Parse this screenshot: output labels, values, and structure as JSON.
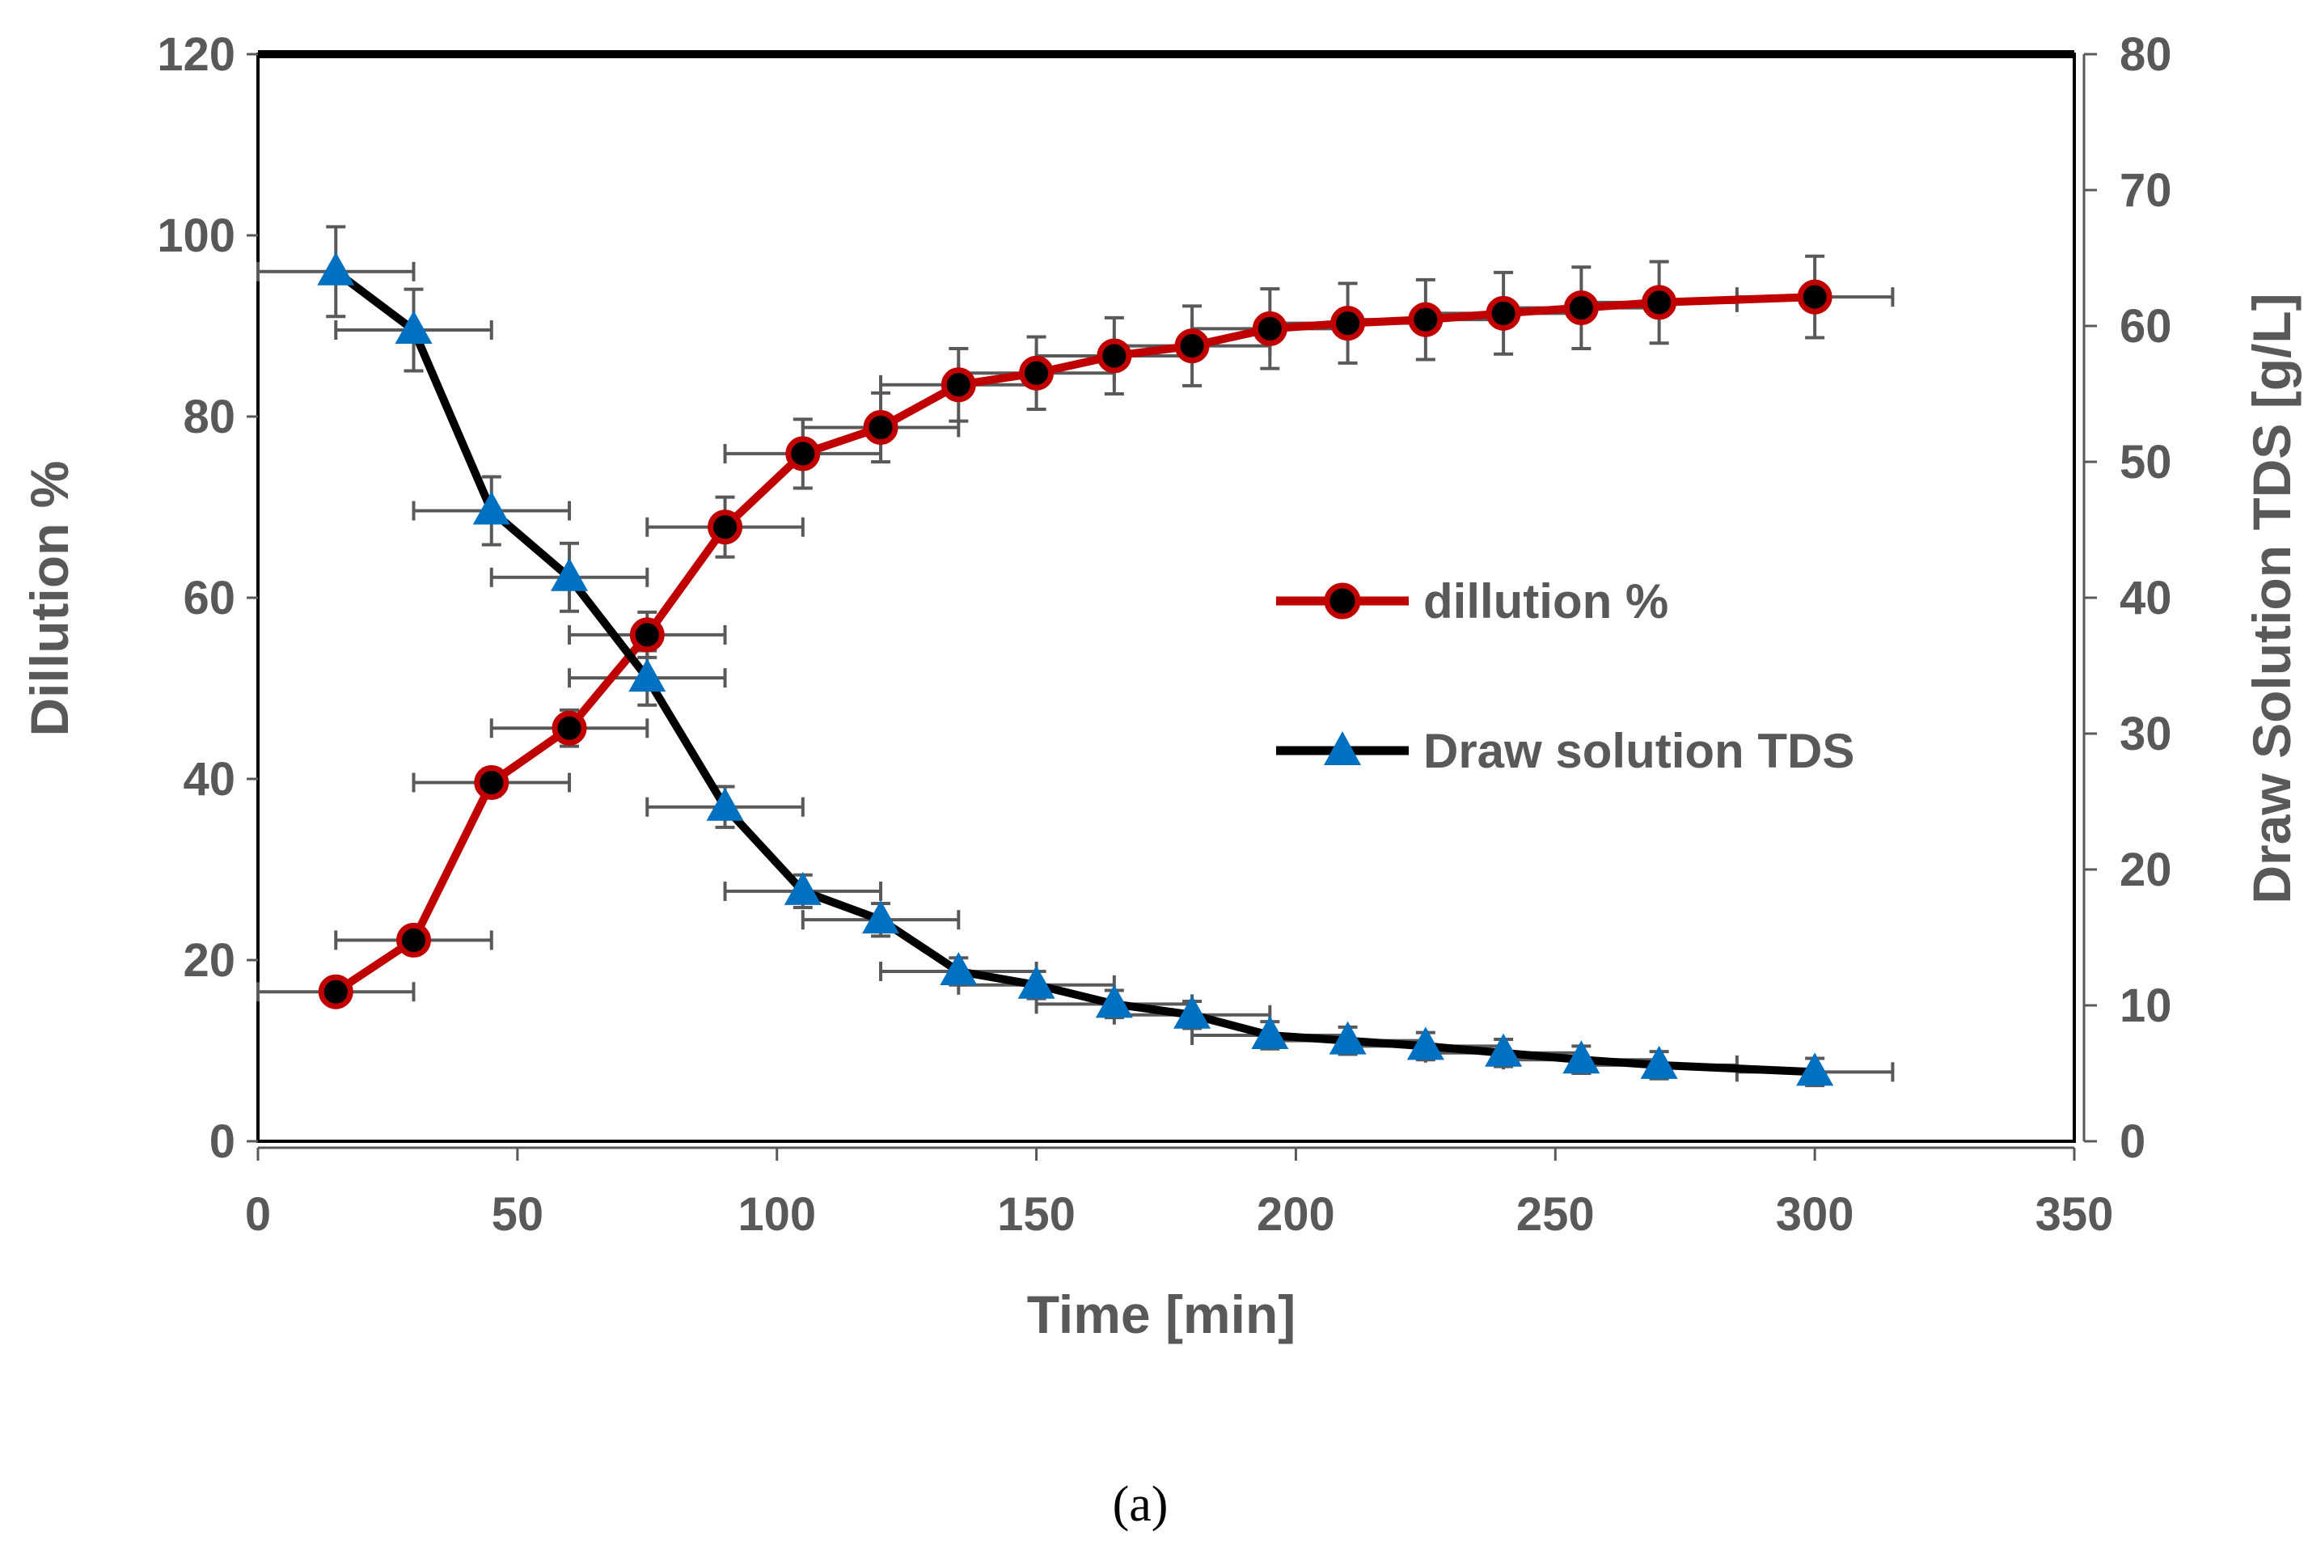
{
  "chart_data": {
    "type": "line",
    "xlabel": "Time [min]",
    "ylabel": "Dillution %",
    "y2label": "Draw Solution TDS [g/L]",
    "xlim": [
      0,
      350
    ],
    "ylim": [
      0,
      120
    ],
    "y2lim": [
      0,
      80
    ],
    "xticks": [
      "0",
      "50",
      "100",
      "150",
      "200",
      "250",
      "300",
      "350"
    ],
    "yticks": [
      "0",
      "20",
      "40",
      "60",
      "80",
      "100",
      "120"
    ],
    "y2ticks": [
      "0",
      "10",
      "20",
      "30",
      "40",
      "50",
      "60",
      "70",
      "80"
    ],
    "grid": false,
    "legend_position": "right-center",
    "caption": "(a)",
    "series": [
      {
        "name": "dillution %",
        "axis": "left",
        "marker": "circle",
        "line_color": "#c00000",
        "marker_fill": "#000000",
        "x": [
          15,
          30,
          45,
          60,
          75,
          90,
          105,
          120,
          135,
          150,
          165,
          180,
          195,
          210,
          225,
          240,
          255,
          270,
          300
        ],
        "values": [
          16.5,
          22.2,
          39.6,
          45.6,
          55.9,
          67.8,
          75.9,
          78.8,
          83.5,
          84.8,
          86.7,
          87.8,
          89.7,
          90.3,
          90.7,
          91.4,
          92.0,
          92.6,
          93.2
        ],
        "error": [
          1.0,
          1.0,
          1.5,
          2.0,
          2.5,
          3.3,
          3.8,
          3.8,
          4.0,
          4.0,
          4.2,
          4.4,
          4.4,
          4.4,
          4.4,
          4.5,
          4.5,
          4.5,
          4.5
        ]
      },
      {
        "name": "Draw solution TDS",
        "axis": "right",
        "marker": "triangle",
        "line_color": "#000000",
        "marker_fill": "#0070c0",
        "x": [
          15,
          30,
          45,
          60,
          75,
          90,
          105,
          120,
          135,
          150,
          165,
          180,
          195,
          210,
          225,
          240,
          255,
          270,
          300
        ],
        "values": [
          64.0,
          59.7,
          46.4,
          41.5,
          34.1,
          24.6,
          18.4,
          16.3,
          12.5,
          11.5,
          10.1,
          9.3,
          7.8,
          7.4,
          7.0,
          6.5,
          6.0,
          5.6,
          5.1
        ],
        "error": [
          3.3,
          3.0,
          2.5,
          2.5,
          2.0,
          1.5,
          1.2,
          1.2,
          1.0,
          1.0,
          1.0,
          1.0,
          1.0,
          1.0,
          1.0,
          1.0,
          1.0,
          1.0,
          1.0
        ]
      }
    ],
    "colors": {
      "axis": "#595959",
      "errorbar": "#595959",
      "border": "#000000"
    }
  }
}
